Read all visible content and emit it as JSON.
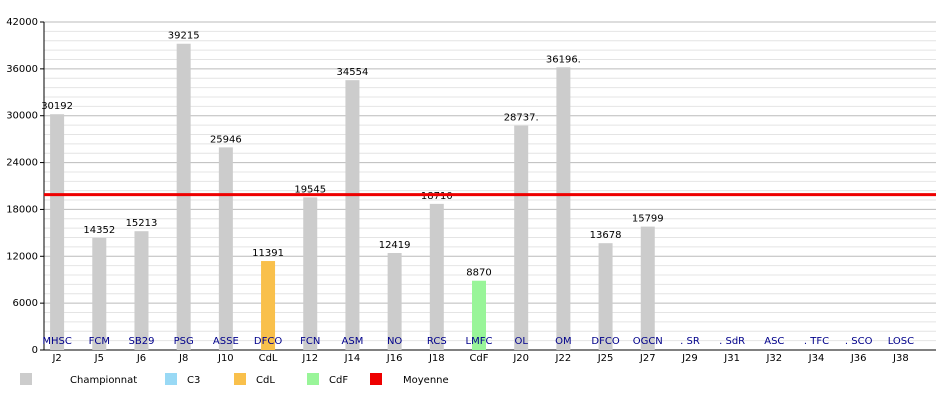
{
  "chart_data": {
    "type": "bar",
    "categories": [
      "J2",
      "J5",
      "J6",
      "J8",
      "J10",
      "CdL",
      "J12",
      "J14",
      "J16",
      "J18",
      "CdF",
      "J20",
      "J22",
      "J25",
      "J27",
      "J29",
      "J31",
      "J32",
      "J34",
      "J36",
      "J38"
    ],
    "opponents": [
      "MHSC",
      "FCM",
      "SB29",
      "PSG",
      "ASSE",
      "DFCO",
      "FCN",
      "ASM",
      "NO",
      "RCS",
      "LMFC",
      "OL",
      "OM",
      "DFCO",
      "OGCN",
      ". SR",
      ". SdR",
      "ASC",
      ". TFC",
      ". SCO",
      "LOSC"
    ],
    "series": [
      {
        "name": "Championnat",
        "color": "#cccccc",
        "values": [
          30192,
          14352,
          15213,
          39215,
          25946,
          null,
          19545,
          34554,
          12419,
          18710,
          null,
          28737,
          36196,
          13678,
          15799,
          null,
          null,
          null,
          null,
          null,
          null
        ],
        "value_labels": [
          "30192",
          "14352",
          "15213",
          "39215",
          "25946",
          null,
          "19545",
          "34554",
          "12419",
          "18710",
          null,
          "28737.",
          "36196.",
          "13678",
          "15799",
          null,
          null,
          null,
          null,
          null,
          null
        ]
      },
      {
        "name": "C3",
        "color": "#99d9f5",
        "values": [
          null,
          null,
          null,
          null,
          null,
          null,
          null,
          null,
          null,
          null,
          null,
          null,
          null,
          null,
          null,
          null,
          null,
          null,
          null,
          null,
          null
        ],
        "value_labels": [
          null,
          null,
          null,
          null,
          null,
          null,
          null,
          null,
          null,
          null,
          null,
          null,
          null,
          null,
          null,
          null,
          null,
          null,
          null,
          null,
          null
        ]
      },
      {
        "name": "CdL",
        "color": "#f9c04b",
        "values": [
          null,
          null,
          null,
          null,
          null,
          11391,
          null,
          null,
          null,
          null,
          null,
          null,
          null,
          null,
          null,
          null,
          null,
          null,
          null,
          null,
          null
        ],
        "value_labels": [
          null,
          null,
          null,
          null,
          null,
          "11391",
          null,
          null,
          null,
          null,
          null,
          null,
          null,
          null,
          null,
          null,
          null,
          null,
          null,
          null,
          null
        ]
      },
      {
        "name": "CdF",
        "color": "#99f599",
        "values": [
          null,
          null,
          null,
          null,
          null,
          null,
          null,
          null,
          null,
          null,
          8870,
          null,
          null,
          null,
          null,
          null,
          null,
          null,
          null,
          null,
          null
        ],
        "value_labels": [
          null,
          null,
          null,
          null,
          null,
          null,
          null,
          null,
          null,
          null,
          "8870",
          null,
          null,
          null,
          null,
          null,
          null,
          null,
          null,
          null,
          null
        ]
      }
    ],
    "mean": {
      "name": "Moyenne",
      "color": "#ee0000",
      "value": 19900
    },
    "ylim": [
      0,
      42000
    ],
    "yticks": [
      0,
      6000,
      12000,
      18000,
      24000,
      30000,
      36000,
      42000
    ],
    "grid": true
  }
}
